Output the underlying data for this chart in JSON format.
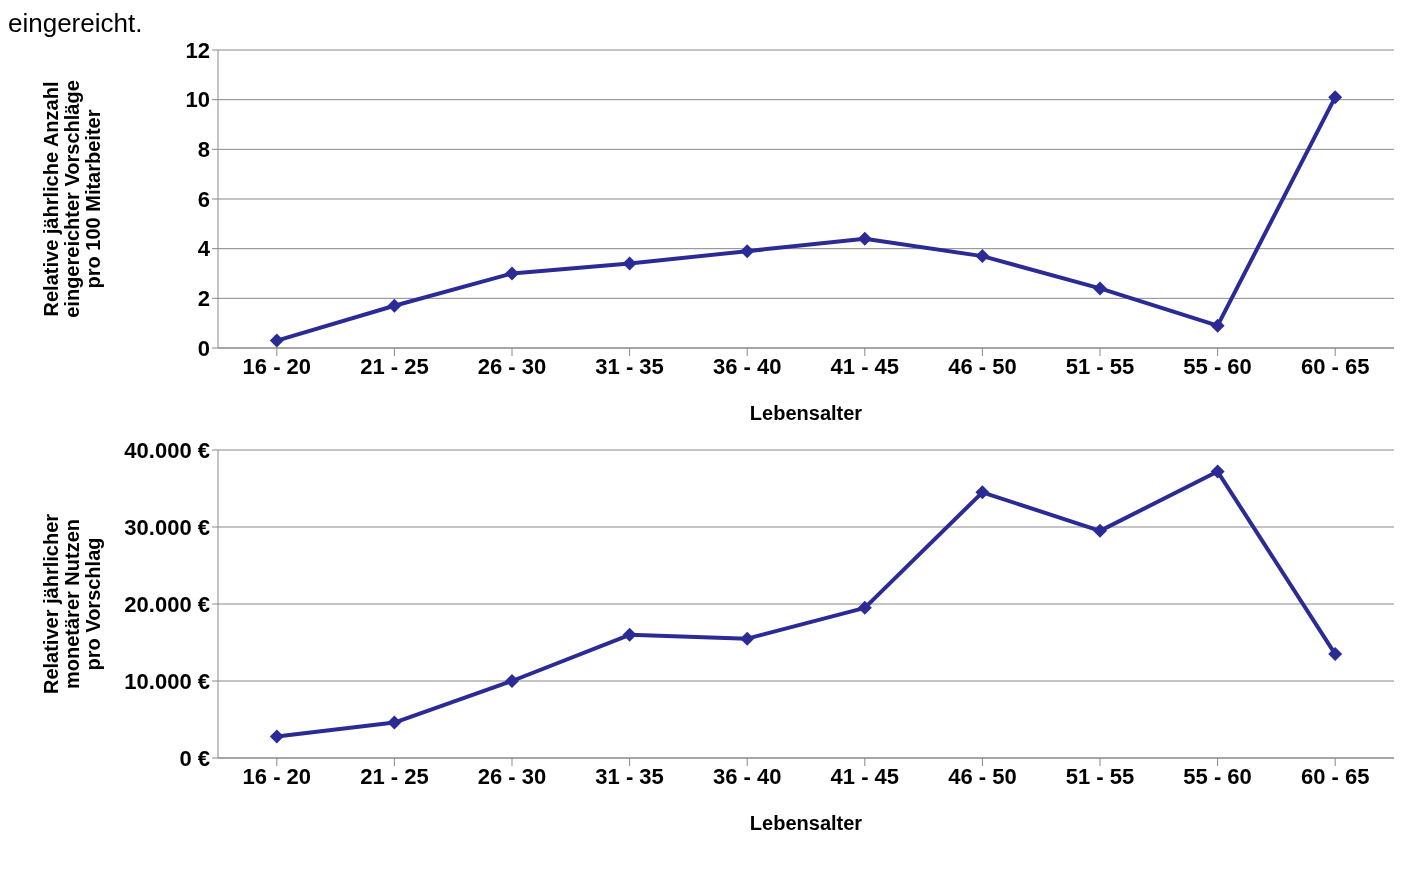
{
  "chart_data": [
    {
      "type": "line",
      "annotations": [
        "eingereicht."
      ],
      "xlabel": "Lebensalter",
      "ylabel": "Relative jährliche Anzahl\neingereichter Vorschläge\npro 100 Mitarbeiter",
      "categories": [
        "16 - 20",
        "21 - 25",
        "26 - 30",
        "31 - 35",
        "36 - 40",
        "41 - 45",
        "46 - 50",
        "51 - 55",
        "55 - 60",
        "60 - 65"
      ],
      "series": [
        {
          "color": "#2b2b96",
          "values": [
            0.3,
            1.7,
            3.0,
            3.4,
            3.9,
            4.4,
            3.7,
            2.4,
            0.9,
            10.1
          ]
        }
      ],
      "ylim": [
        0,
        12
      ],
      "yticks": [
        0,
        2,
        4,
        6,
        8,
        10,
        12
      ],
      "grid": "y",
      "legend": false,
      "marker": "diamond",
      "line_style": "solid"
    },
    {
      "type": "line",
      "xlabel": "Lebensalter",
      "ylabel": "Relativer jährlicher\nmonetärer Nutzen\npro Vorschlag",
      "categories": [
        "16 - 20",
        "21 - 25",
        "26 - 30",
        "31 - 35",
        "36 - 40",
        "41 - 45",
        "46 - 50",
        "51 - 55",
        "55 - 60",
        "60 - 65"
      ],
      "series": [
        {
          "color": "#2b2b96",
          "values": [
            2800,
            4600,
            10000,
            16000,
            15500,
            19500,
            34500,
            29500,
            37200,
            13500
          ]
        }
      ],
      "ylim": [
        0,
        40000
      ],
      "yticks": [
        {
          "value": 0,
          "label": "0 €"
        },
        {
          "value": 10000,
          "label": "10.000 €"
        },
        {
          "value": 20000,
          "label": "20.000 €"
        },
        {
          "value": 30000,
          "label": "30.000 €"
        },
        {
          "value": 40000,
          "label": "40.000 €"
        }
      ],
      "grid": "y",
      "legend": false,
      "marker": "diamond",
      "line_style": "solid"
    }
  ]
}
